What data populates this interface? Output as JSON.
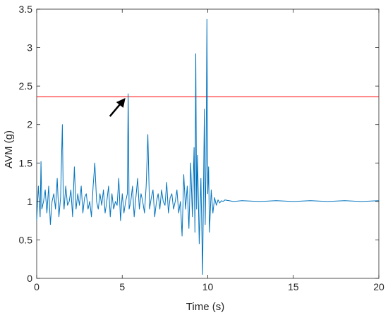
{
  "chart_data": {
    "type": "line",
    "title": "",
    "xlabel": "Time (s)",
    "ylabel": "AVM (g)",
    "xlim": [
      0,
      20
    ],
    "ylim": [
      0,
      3.5
    ],
    "xticks": [
      0,
      5,
      10,
      15,
      20
    ],
    "yticks": [
      0,
      0.5,
      1,
      1.5,
      2,
      2.5,
      3,
      3.5
    ],
    "xtick_labels": [
      "0",
      "5",
      "10",
      "15",
      "20"
    ],
    "ytick_labels": [
      "0",
      "0.5",
      "1",
      "1.5",
      "2",
      "2.5",
      "3",
      "3.5"
    ],
    "grid": false,
    "box": true,
    "series": [
      {
        "color": "#0072BD",
        "x": [
          0,
          0.1,
          0.2,
          0.25,
          0.3,
          0.4,
          0.5,
          0.6,
          0.7,
          0.8,
          0.9,
          1.0,
          1.1,
          1.2,
          1.3,
          1.4,
          1.5,
          1.55,
          1.6,
          1.7,
          1.8,
          1.9,
          2.0,
          2.1,
          2.2,
          2.3,
          2.4,
          2.5,
          2.6,
          2.7,
          2.8,
          2.9,
          3.0,
          3.1,
          3.2,
          3.3,
          3.4,
          3.5,
          3.6,
          3.7,
          3.8,
          3.9,
          4.0,
          4.1,
          4.2,
          4.3,
          4.4,
          4.5,
          4.6,
          4.7,
          4.8,
          4.9,
          5.0,
          5.1,
          5.2,
          5.3,
          5.35,
          5.4,
          5.5,
          5.6,
          5.7,
          5.8,
          5.9,
          6.0,
          6.1,
          6.2,
          6.3,
          6.4,
          6.5,
          6.6,
          6.7,
          6.8,
          6.9,
          7.0,
          7.1,
          7.2,
          7.3,
          7.4,
          7.5,
          7.6,
          7.7,
          7.8,
          7.9,
          8.0,
          8.1,
          8.2,
          8.3,
          8.4,
          8.5,
          8.6,
          8.7,
          8.8,
          8.9,
          9.0,
          9.1,
          9.2,
          9.25,
          9.3,
          9.35,
          9.4,
          9.5,
          9.6,
          9.7,
          9.75,
          9.8,
          9.85,
          9.9,
          9.95,
          10.0,
          10.05,
          10.1,
          10.2,
          10.3,
          10.4,
          10.5,
          10.6,
          10.7,
          10.8,
          10.9,
          11.0,
          11.5,
          12.0,
          13.0,
          14.0,
          15.0,
          16.0,
          17.0,
          18.0,
          19.0,
          20.0
        ],
        "y": [
          0.75,
          1.2,
          0.8,
          1.52,
          0.9,
          1.0,
          1.15,
          0.85,
          1.2,
          0.7,
          1.0,
          1.1,
          0.9,
          1.3,
          0.8,
          1.05,
          2.0,
          1.1,
          0.9,
          1.2,
          0.95,
          1.0,
          1.15,
          0.8,
          1.45,
          0.9,
          1.1,
          0.95,
          1.2,
          0.85,
          1.05,
          1.1,
          0.9,
          1.0,
          0.8,
          1.2,
          1.5,
          1.0,
          0.9,
          1.1,
          0.95,
          1.15,
          0.85,
          1.0,
          1.2,
          0.8,
          1.1,
          0.9,
          1.0,
          0.95,
          1.3,
          0.75,
          1.1,
          0.85,
          1.0,
          1.1,
          2.4,
          0.9,
          1.0,
          1.2,
          0.8,
          1.05,
          1.3,
          0.9,
          1.1,
          1.0,
          0.85,
          1.2,
          1.87,
          0.9,
          1.05,
          1.15,
          0.8,
          1.0,
          1.1,
          0.9,
          1.15,
          1.0,
          0.95,
          1.25,
          0.85,
          1.05,
          1.1,
          0.9,
          1.0,
          1.15,
          0.85,
          1.0,
          0.55,
          1.35,
          0.9,
          1.2,
          0.65,
          1.5,
          0.8,
          1.7,
          0.6,
          2.92,
          0.9,
          1.6,
          0.45,
          1.3,
          0.05,
          1.1,
          2.2,
          0.7,
          1.5,
          3.37,
          1.1,
          1.45,
          0.6,
          1.15,
          0.85,
          1.05,
          0.95,
          1.02,
          0.98,
          1.01,
          1.0,
          1.02,
          1.0,
          1.01,
          1.0,
          1.01,
          1.0,
          1.01,
          1.0,
          1.01,
          1.0,
          1.01
        ]
      }
    ],
    "reference_lines": [
      {
        "orientation": "horizontal",
        "y": 2.36,
        "color": "#FF0000"
      }
    ],
    "annotations": [
      {
        "type": "arrow",
        "target_x": 5.35,
        "target_y": 2.4,
        "color": "#000000"
      }
    ]
  }
}
